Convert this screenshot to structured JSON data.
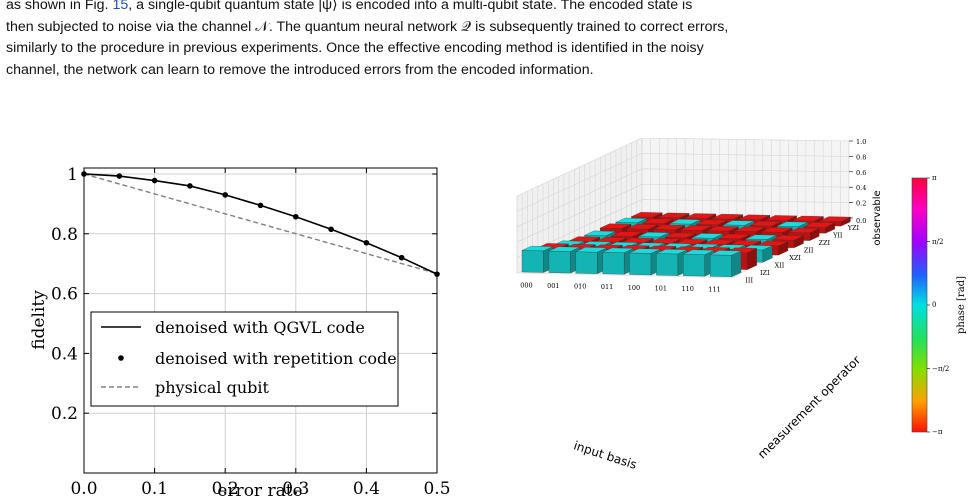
{
  "paragraph": {
    "line1_pre": "as shown in Fig. ",
    "line1_ref": "15",
    "line1_post": ", a single-qubit quantum state |ψ⟩ is encoded into a multi-qubit state.  The encoded state is",
    "line2": "then subjected to noise via the channel 𝒩.  The quantum neural network 𝒬 is subsequently trained to correct errors,",
    "line3": "similarly to the procedure in previous experiments.  Once the effective encoding method is identified in the noisy",
    "line4": "channel, the network can learn to remove the introduced errors from the encoded information."
  },
  "chart_data": [
    {
      "type": "line",
      "xlabel": "error rate",
      "ylabel": "fidelity",
      "xlim": [
        0.0,
        0.5
      ],
      "ylim": [
        0.0,
        1.02
      ],
      "x_ticks": [
        "0.0",
        "0.1",
        "0.2",
        "0.3",
        "0.4",
        "0.5"
      ],
      "y_ticks": [
        "0.2",
        "0.4",
        "0.6",
        "0.8",
        "1"
      ],
      "grid": true,
      "legend_position": "bottom-left",
      "series": [
        {
          "name": "denoised with QGVL code",
          "style": "solid",
          "color": "#000000",
          "x": [
            0.0,
            0.05,
            0.1,
            0.15,
            0.2,
            0.25,
            0.3,
            0.35,
            0.4,
            0.45,
            0.5
          ],
          "y": [
            1.0,
            0.993,
            0.978,
            0.96,
            0.93,
            0.895,
            0.857,
            0.815,
            0.77,
            0.72,
            0.665
          ]
        },
        {
          "name": "denoised with repetition code",
          "style": "markers",
          "color": "#000000",
          "x": [
            0.0,
            0.05,
            0.1,
            0.15,
            0.2,
            0.25,
            0.3,
            0.35,
            0.4,
            0.45,
            0.5
          ],
          "y": [
            1.0,
            0.993,
            0.978,
            0.96,
            0.93,
            0.895,
            0.857,
            0.815,
            0.77,
            0.72,
            0.665
          ]
        },
        {
          "name": "physical qubit",
          "style": "dashed",
          "color": "#808080",
          "x": [
            0.0,
            0.5
          ],
          "y": [
            1.0,
            0.667
          ]
        }
      ]
    },
    {
      "type": "bar3d",
      "xlabel": "input basis",
      "ylabel": "measurement operator",
      "zlabel": "observable",
      "x_categories": [
        "000",
        "001",
        "010",
        "011",
        "100",
        "101",
        "110",
        "111"
      ],
      "y_categories": [
        "III",
        "IZI",
        "XII",
        "XZI",
        "ZII",
        "ZZI",
        "YII",
        "YZI"
      ],
      "z_ticks": [
        "0.0",
        "0.2",
        "0.4",
        "0.6",
        "0.8",
        "1.0"
      ],
      "zlim": [
        0.0,
        1.0
      ],
      "colorbar": {
        "label": "phase [rad]",
        "ticks": [
          "π",
          "π/2",
          "0",
          "−π/2",
          "−π"
        ]
      },
      "colors": {
        "phase_0": "#19dcdc",
        "phase_pi": "#e51515"
      }
    }
  ]
}
